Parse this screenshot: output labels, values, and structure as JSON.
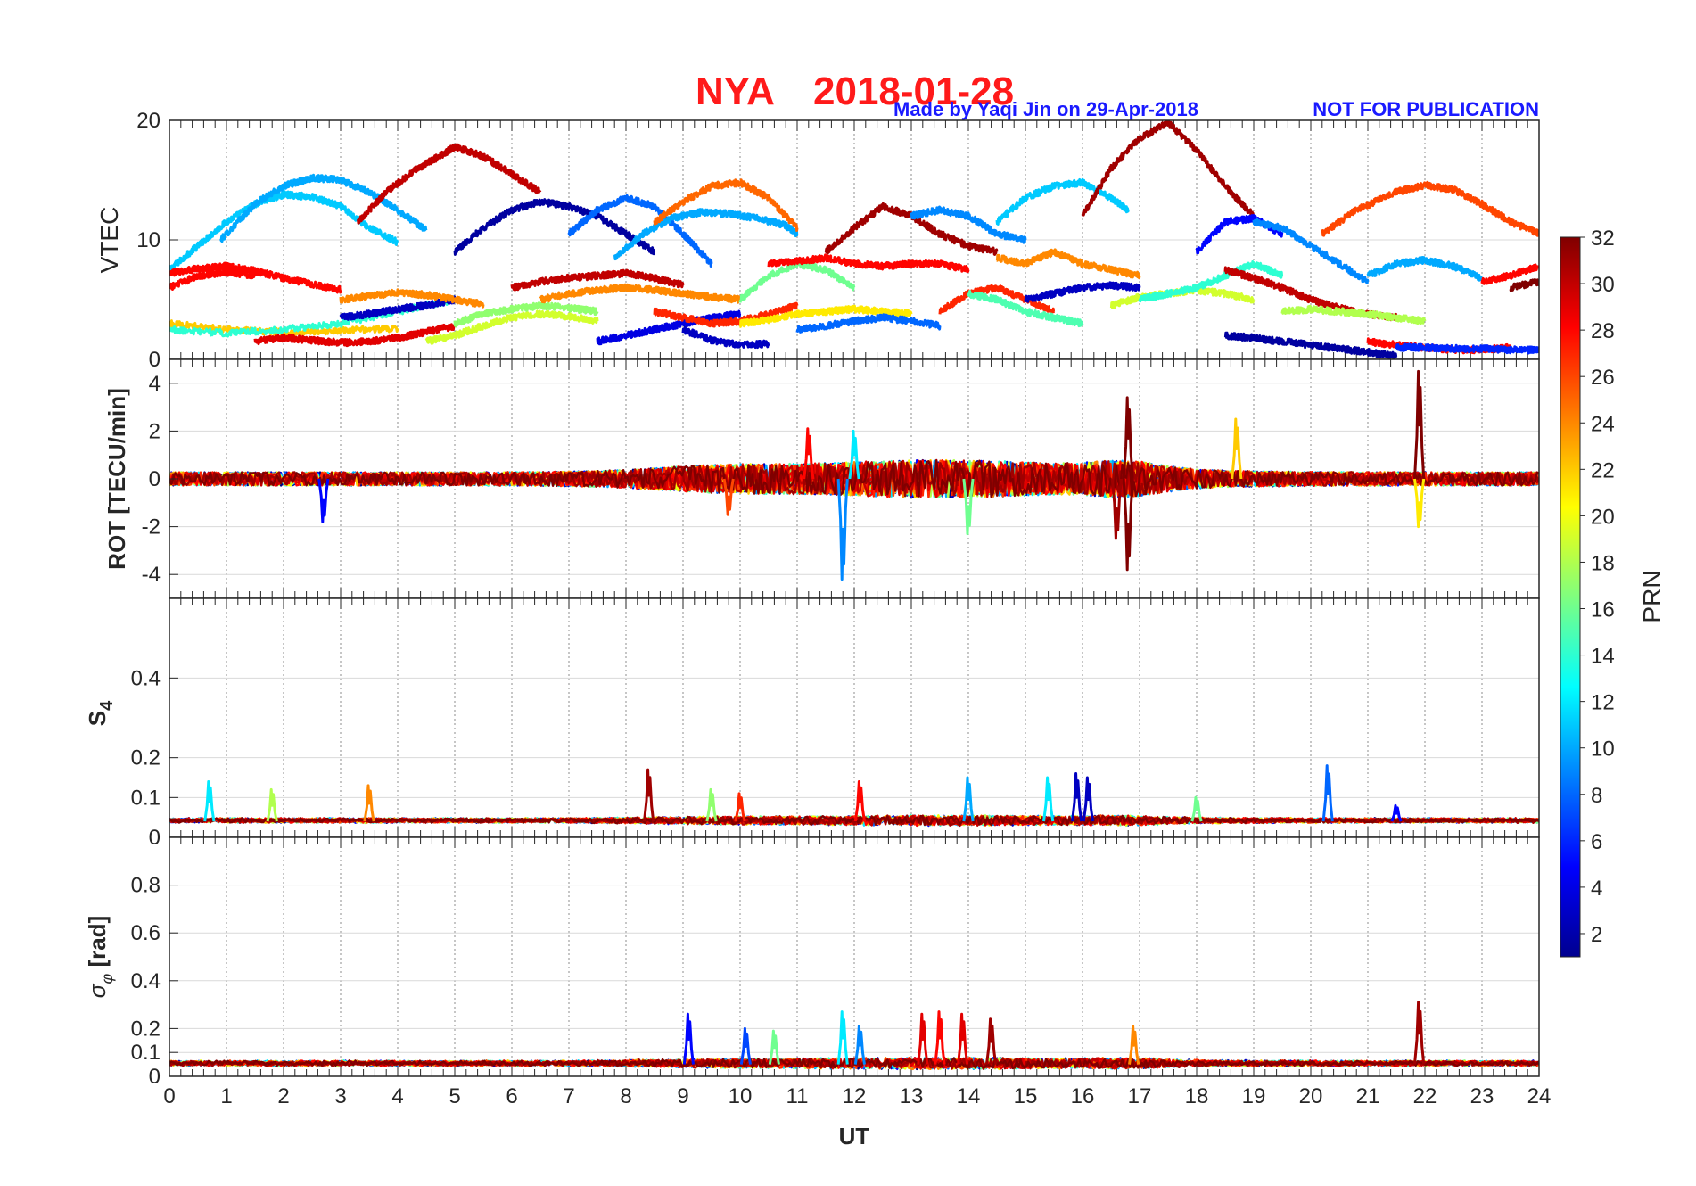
{
  "header": {
    "station": "NYA",
    "date": "2018-01-28",
    "credit": "Made by Yaqi Jin on 29-Apr-2018",
    "notice": "NOT FOR PUBLICATION"
  },
  "colors": {
    "title": "#ff1a1a",
    "credit": "#1a1aff",
    "grid_major": "#8c8c8c",
    "grid_minor": "#d9d9d9",
    "axis": "#262626"
  },
  "colorbar": {
    "label": "PRN",
    "min": 1,
    "max": 32,
    "ticks": [
      2,
      4,
      6,
      8,
      10,
      12,
      14,
      16,
      18,
      20,
      22,
      24,
      26,
      28,
      30,
      32
    ],
    "colormap": "jet"
  },
  "chart_data": [
    {
      "type": "line",
      "panel": "vtec",
      "ylabel": "VTEC",
      "xlim": [
        0,
        24
      ],
      "ylim": [
        0,
        20
      ],
      "yticks": [
        0,
        10,
        20
      ],
      "grid": true,
      "series": [
        {
          "prn": 11,
          "x": [
            0.0,
            0.5,
            1.0,
            1.5,
            2.0,
            2.5,
            3.0,
            3.5,
            4.0
          ],
          "y": [
            7.5,
            9.5,
            11.5,
            13.0,
            13.8,
            13.6,
            12.8,
            11.0,
            9.8
          ]
        },
        {
          "prn": 10,
          "x": [
            0.9,
            1.5,
            2.0,
            2.5,
            3.0,
            3.5,
            4.0,
            4.5
          ],
          "y": [
            10.0,
            13.0,
            14.5,
            15.2,
            15.0,
            14.0,
            12.5,
            10.8
          ]
        },
        {
          "prn": 30,
          "x": [
            3.3,
            3.8,
            4.3,
            4.8,
            5.0,
            5.5,
            6.0,
            6.5
          ],
          "y": [
            11.5,
            14.0,
            15.8,
            17.2,
            17.8,
            17.0,
            15.5,
            14.0
          ]
        },
        {
          "prn": 2,
          "x": [
            5.0,
            5.5,
            6.0,
            6.5,
            7.0,
            7.5,
            8.0,
            8.5
          ],
          "y": [
            9.0,
            11.0,
            12.5,
            13.2,
            12.8,
            12.0,
            10.5,
            9.0
          ]
        },
        {
          "prn": 8,
          "x": [
            7.0,
            7.5,
            8.0,
            8.5,
            9.0,
            9.5
          ],
          "y": [
            10.5,
            12.5,
            13.5,
            12.8,
            10.5,
            8.0
          ]
        },
        {
          "prn": 10,
          "x": [
            7.8,
            8.3,
            8.8,
            9.3,
            9.8,
            10.3,
            10.8,
            11.0
          ],
          "y": [
            8.5,
            10.5,
            11.8,
            12.3,
            12.2,
            11.8,
            11.2,
            10.5
          ]
        },
        {
          "prn": 25,
          "x": [
            8.5,
            9.0,
            9.5,
            10.0,
            10.5,
            11.0
          ],
          "y": [
            11.5,
            13.2,
            14.5,
            14.8,
            13.5,
            11.0
          ]
        },
        {
          "prn": 31,
          "x": [
            11.5,
            12.0,
            12.5,
            13.0,
            13.5,
            14.0,
            14.5
          ],
          "y": [
            9.0,
            11.0,
            12.8,
            12.0,
            10.5,
            9.5,
            9.0
          ]
        },
        {
          "prn": 9,
          "x": [
            13.0,
            13.5,
            14.0,
            14.5,
            15.0
          ],
          "y": [
            12.0,
            12.5,
            12.0,
            10.5,
            10.0
          ]
        },
        {
          "prn": 11,
          "x": [
            14.5,
            15.0,
            15.5,
            16.0,
            16.5,
            16.8
          ],
          "y": [
            11.5,
            13.5,
            14.5,
            14.8,
            13.5,
            12.5
          ]
        },
        {
          "prn": 31,
          "x": [
            16.0,
            16.5,
            17.0,
            17.5,
            18.0,
            18.5,
            19.0
          ],
          "y": [
            12.0,
            16.0,
            18.5,
            19.8,
            17.5,
            14.5,
            12.0
          ]
        },
        {
          "prn": 5,
          "x": [
            18.0,
            18.5,
            19.0,
            19.5
          ],
          "y": [
            9.0,
            11.5,
            11.8,
            10.5
          ]
        },
        {
          "prn": 9,
          "x": [
            19.0,
            19.5,
            20.0,
            20.5,
            21.0
          ],
          "y": [
            11.5,
            11.0,
            9.5,
            8.0,
            6.5
          ]
        },
        {
          "prn": 10,
          "x": [
            21.0,
            21.5,
            22.0,
            22.5,
            23.0
          ],
          "y": [
            7.0,
            8.0,
            8.3,
            7.8,
            6.8
          ]
        },
        {
          "prn": 26,
          "x": [
            20.2,
            20.8,
            21.5,
            22.0,
            22.5,
            23.0,
            23.5,
            24.0
          ],
          "y": [
            10.5,
            12.5,
            14.0,
            14.6,
            14.2,
            13.0,
            11.5,
            10.5
          ]
        },
        {
          "prn": 28,
          "x": [
            0.0,
            0.5,
            1.0,
            1.5,
            2.0,
            2.5,
            3.0
          ],
          "y": [
            7.2,
            7.6,
            7.8,
            7.4,
            6.8,
            6.3,
            5.8
          ]
        },
        {
          "prn": 28,
          "x": [
            0.0,
            0.5,
            1.0,
            1.5
          ],
          "y": [
            6.0,
            7.0,
            7.3,
            7.0
          ]
        },
        {
          "prn": 22,
          "x": [
            0.0,
            1.0,
            2.0,
            3.0,
            4.0
          ],
          "y": [
            3.0,
            2.5,
            2.3,
            2.4,
            2.6
          ]
        },
        {
          "prn": 14,
          "x": [
            0.0,
            1.0,
            2.0,
            3.0,
            4.0,
            5.0
          ],
          "y": [
            2.5,
            2.2,
            2.5,
            3.0,
            4.0,
            5.0
          ]
        },
        {
          "prn": 3,
          "x": [
            3.0,
            3.5,
            4.0,
            4.5,
            5.0
          ],
          "y": [
            3.5,
            3.8,
            4.2,
            4.5,
            5.0
          ]
        },
        {
          "prn": 24,
          "x": [
            3.0,
            3.5,
            4.0,
            4.5,
            5.0,
            5.5
          ],
          "y": [
            5.0,
            5.3,
            5.6,
            5.4,
            5.0,
            4.6
          ]
        },
        {
          "prn": 29,
          "x": [
            1.5,
            2.0,
            2.5,
            3.0,
            3.5,
            4.0,
            4.5,
            5.0
          ],
          "y": [
            1.5,
            1.8,
            1.6,
            1.4,
            1.5,
            1.8,
            2.3,
            2.8
          ]
        },
        {
          "prn": 19,
          "x": [
            4.5,
            5.0,
            5.5,
            6.0,
            6.5,
            7.0,
            7.5
          ],
          "y": [
            1.5,
            2.0,
            2.8,
            3.5,
            3.8,
            3.6,
            3.2
          ]
        },
        {
          "prn": 17,
          "x": [
            5.0,
            5.5,
            6.0,
            6.5,
            7.0,
            7.5
          ],
          "y": [
            3.0,
            3.8,
            4.2,
            4.5,
            4.3,
            4.0
          ]
        },
        {
          "prn": 30,
          "x": [
            6.0,
            6.5,
            7.0,
            7.5,
            8.0,
            8.5,
            9.0
          ],
          "y": [
            6.0,
            6.5,
            6.8,
            7.0,
            7.2,
            6.8,
            6.2
          ]
        },
        {
          "prn": 24,
          "x": [
            6.5,
            7.0,
            7.5,
            8.0,
            8.5,
            9.0,
            9.5,
            10.0
          ],
          "y": [
            5.0,
            5.5,
            5.8,
            6.0,
            5.8,
            5.5,
            5.2,
            5.0
          ]
        },
        {
          "prn": 4,
          "x": [
            7.5,
            8.0,
            8.5,
            9.0,
            9.5,
            10.0
          ],
          "y": [
            1.5,
            2.0,
            2.5,
            3.0,
            3.5,
            3.8
          ]
        },
        {
          "prn": 3,
          "x": [
            9.0,
            9.5,
            10.0,
            10.5
          ],
          "y": [
            2.5,
            1.6,
            1.2,
            1.3
          ]
        },
        {
          "prn": 27,
          "x": [
            8.5,
            9.0,
            9.5,
            10.0,
            10.5,
            11.0
          ],
          "y": [
            4.0,
            3.5,
            3.0,
            3.2,
            3.8,
            4.5
          ]
        },
        {
          "prn": 16,
          "x": [
            10.0,
            10.5,
            11.0,
            11.5,
            12.0
          ],
          "y": [
            5.0,
            7.0,
            8.0,
            7.5,
            6.0
          ]
        },
        {
          "prn": 28,
          "x": [
            10.5,
            11.0,
            11.5,
            12.0,
            12.5,
            13.0,
            13.5,
            14.0
          ],
          "y": [
            8.0,
            8.2,
            8.5,
            8.0,
            7.8,
            8.0,
            8.0,
            7.5
          ]
        },
        {
          "prn": 21,
          "x": [
            10.0,
            10.5,
            11.0,
            11.5,
            12.0,
            12.5,
            13.0
          ],
          "y": [
            3.0,
            3.3,
            3.8,
            4.0,
            4.2,
            4.0,
            3.8
          ]
        },
        {
          "prn": 8,
          "x": [
            11.0,
            11.5,
            12.0,
            12.5,
            13.0,
            13.5
          ],
          "y": [
            2.5,
            2.8,
            3.2,
            3.5,
            3.2,
            2.8
          ]
        },
        {
          "prn": 27,
          "x": [
            13.5,
            14.0,
            14.5,
            15.0,
            15.5
          ],
          "y": [
            4.0,
            5.5,
            6.0,
            5.0,
            4.0
          ]
        },
        {
          "prn": 24,
          "x": [
            14.5,
            15.0,
            15.5,
            16.0,
            16.5,
            17.0
          ],
          "y": [
            8.5,
            8.0,
            9.0,
            8.0,
            7.5,
            7.0
          ]
        },
        {
          "prn": 15,
          "x": [
            14.0,
            14.5,
            15.0,
            15.5,
            16.0
          ],
          "y": [
            5.5,
            5.0,
            4.0,
            3.5,
            3.0
          ]
        },
        {
          "prn": 3,
          "x": [
            15.0,
            15.5,
            16.0,
            16.5,
            17.0
          ],
          "y": [
            5.0,
            5.5,
            6.0,
            6.2,
            6.0
          ]
        },
        {
          "prn": 19,
          "x": [
            16.5,
            17.0,
            17.5,
            18.0,
            18.5,
            19.0
          ],
          "y": [
            4.5,
            5.2,
            5.5,
            5.8,
            5.5,
            5.0
          ]
        },
        {
          "prn": 14,
          "x": [
            17.0,
            17.5,
            18.0,
            18.5,
            19.0,
            19.5
          ],
          "y": [
            5.0,
            5.5,
            6.0,
            7.0,
            8.0,
            7.0
          ]
        },
        {
          "prn": 30,
          "x": [
            18.5,
            19.0,
            19.5,
            20.0,
            20.5,
            21.0,
            21.5
          ],
          "y": [
            7.5,
            6.8,
            6.0,
            5.0,
            4.3,
            3.8,
            3.5
          ]
        },
        {
          "prn": 2,
          "x": [
            18.5,
            19.0,
            19.5,
            20.0,
            20.5,
            21.0,
            21.5
          ],
          "y": [
            2.0,
            1.8,
            1.5,
            1.2,
            0.9,
            0.6,
            0.3
          ]
        },
        {
          "prn": 18,
          "x": [
            19.5,
            20.0,
            20.5,
            21.0,
            21.5,
            22.0
          ],
          "y": [
            4.0,
            4.2,
            4.0,
            3.8,
            3.5,
            3.2
          ]
        },
        {
          "prn": 28,
          "x": [
            21.0,
            21.5,
            22.0,
            22.5,
            23.0,
            23.5
          ],
          "y": [
            1.5,
            1.2,
            1.0,
            0.8,
            0.8,
            1.0
          ]
        },
        {
          "prn": 6,
          "x": [
            21.5,
            22.0,
            22.5,
            23.0,
            23.5,
            24.0
          ],
          "y": [
            1.0,
            1.0,
            0.9,
            0.9,
            0.8,
            0.8
          ]
        },
        {
          "prn": 28,
          "x": [
            23.0,
            23.5,
            24.0
          ],
          "y": [
            6.5,
            7.0,
            7.8
          ]
        },
        {
          "prn": 32,
          "x": [
            23.5,
            24.0
          ],
          "y": [
            6.0,
            6.5
          ]
        }
      ]
    },
    {
      "type": "line",
      "panel": "rot",
      "ylabel": "ROT [TECU/min]",
      "xlim": [
        0,
        24
      ],
      "ylim": [
        -5,
        5
      ],
      "yticks": [
        -4,
        -2,
        0,
        2,
        4
      ],
      "grid": true,
      "spikes": [
        {
          "prn": 5,
          "x": 2.7,
          "y": -1.8
        },
        {
          "prn": 9,
          "x": 11.8,
          "y": -4.2
        },
        {
          "prn": 28,
          "x": 11.2,
          "y": 2.1
        },
        {
          "prn": 32,
          "x": 16.8,
          "y": 3.4
        },
        {
          "prn": 32,
          "x": 16.8,
          "y": -3.8
        },
        {
          "prn": 31,
          "x": 16.6,
          "y": -2.5
        },
        {
          "prn": 32,
          "x": 21.9,
          "y": 4.5
        },
        {
          "prn": 21,
          "x": 21.9,
          "y": -2.0
        },
        {
          "prn": 22,
          "x": 18.7,
          "y": 2.5
        },
        {
          "prn": 16,
          "x": 14.0,
          "y": -2.3
        },
        {
          "prn": 12,
          "x": 12.0,
          "y": 2.0
        },
        {
          "prn": 26,
          "x": 9.8,
          "y": -1.5
        }
      ]
    },
    {
      "type": "line",
      "panel": "s4",
      "ylabel": "S4",
      "xlim": [
        0,
        24
      ],
      "ylim": [
        0,
        0.6
      ],
      "yticks": [
        0,
        0.1,
        0.2,
        0.4
      ],
      "grid": true,
      "peaks": [
        {
          "prn": 12,
          "x": 0.7,
          "y": 0.14
        },
        {
          "prn": 18,
          "x": 1.8,
          "y": 0.12
        },
        {
          "prn": 24,
          "x": 3.5,
          "y": 0.13
        },
        {
          "prn": 31,
          "x": 8.4,
          "y": 0.17
        },
        {
          "prn": 17,
          "x": 9.5,
          "y": 0.12
        },
        {
          "prn": 27,
          "x": 10.0,
          "y": 0.11
        },
        {
          "prn": 28,
          "x": 12.1,
          "y": 0.14
        },
        {
          "prn": 10,
          "x": 14.0,
          "y": 0.15
        },
        {
          "prn": 12,
          "x": 15.4,
          "y": 0.15
        },
        {
          "prn": 3,
          "x": 15.9,
          "y": 0.16
        },
        {
          "prn": 3,
          "x": 16.1,
          "y": 0.15
        },
        {
          "prn": 16,
          "x": 18.0,
          "y": 0.1
        },
        {
          "prn": 8,
          "x": 20.3,
          "y": 0.18
        },
        {
          "prn": 5,
          "x": 21.5,
          "y": 0.08
        }
      ]
    },
    {
      "type": "line",
      "panel": "sigma_phi",
      "ylabel": "σφ [rad]",
      "xlabel": "UT",
      "xlim": [
        0,
        24
      ],
      "ylim": [
        0,
        1
      ],
      "yticks": [
        0,
        0.1,
        0.2,
        0.4,
        0.6,
        0.8
      ],
      "xticks": [
        0,
        1,
        2,
        3,
        4,
        5,
        6,
        7,
        8,
        9,
        10,
        11,
        12,
        13,
        14,
        15,
        16,
        17,
        18,
        19,
        20,
        21,
        22,
        23,
        24
      ],
      "grid": true,
      "peaks": [
        {
          "prn": 5,
          "x": 9.1,
          "y": 0.26
        },
        {
          "prn": 12,
          "x": 11.8,
          "y": 0.27
        },
        {
          "prn": 9,
          "x": 12.1,
          "y": 0.21
        },
        {
          "prn": 29,
          "x": 13.2,
          "y": 0.26
        },
        {
          "prn": 28,
          "x": 13.5,
          "y": 0.27
        },
        {
          "prn": 29,
          "x": 13.9,
          "y": 0.26
        },
        {
          "prn": 31,
          "x": 14.4,
          "y": 0.24
        },
        {
          "prn": 24,
          "x": 16.9,
          "y": 0.21
        },
        {
          "prn": 31,
          "x": 21.9,
          "y": 0.31
        },
        {
          "prn": 16,
          "x": 10.6,
          "y": 0.19
        },
        {
          "prn": 7,
          "x": 10.1,
          "y": 0.2
        }
      ]
    }
  ]
}
